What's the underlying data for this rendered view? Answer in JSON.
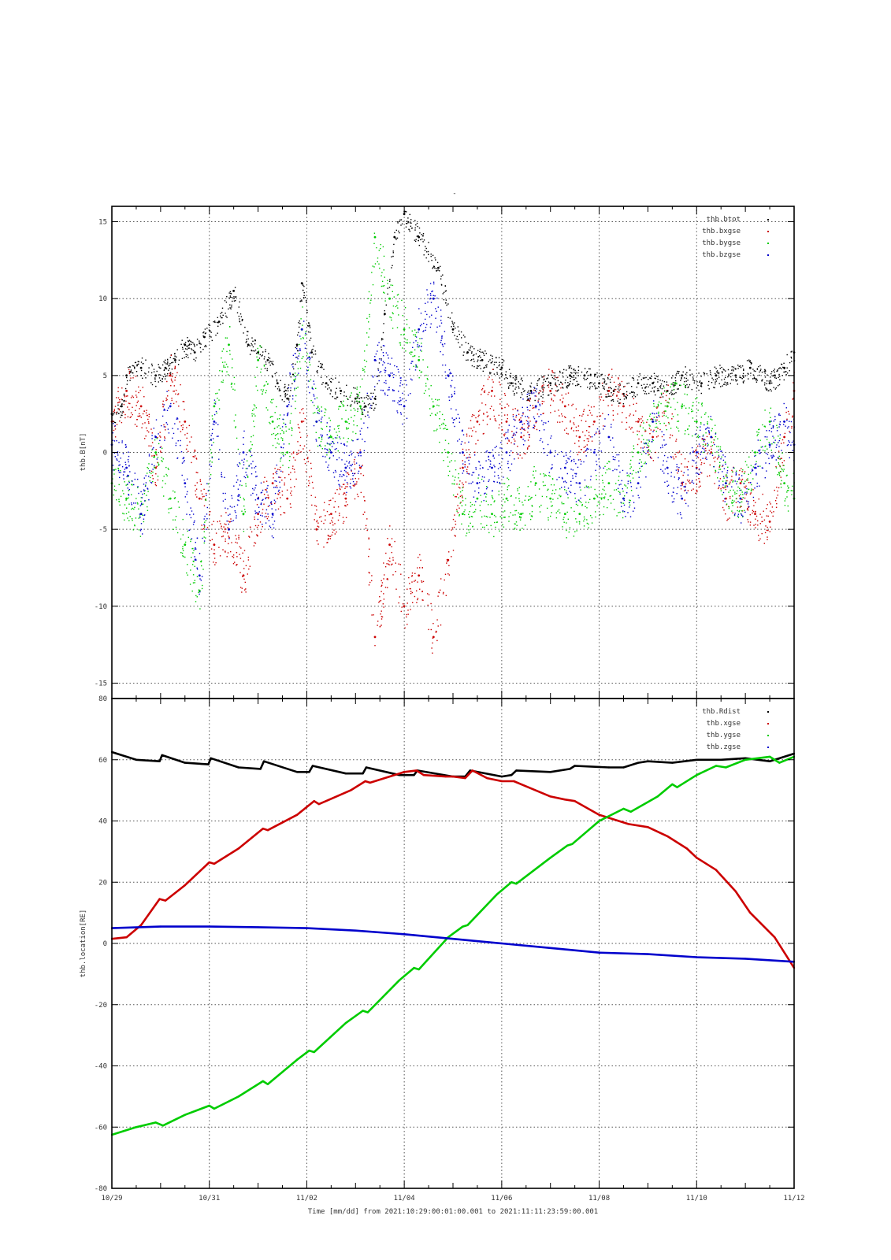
{
  "page_title_mark": "-",
  "time_axis": {
    "label": "Time [mm/dd]  from 2021:10:29:00:01:00.001  to  2021:11:11:23:59:00.001",
    "start": "10/29",
    "end": "11/12",
    "tick_labels": [
      "10/29",
      "10/31",
      "11/02",
      "11/04",
      "11/06",
      "11/08",
      "11/10",
      "11/12"
    ]
  },
  "chart_data": [
    {
      "type": "scatter",
      "title": "",
      "xlabel": "",
      "ylabel": "thb.B[nT]",
      "ylim": [
        -16,
        16
      ],
      "yticks": [
        15,
        10,
        5,
        0,
        -5,
        -10,
        -15
      ],
      "xlim_days": [
        0,
        14
      ],
      "grid": true,
      "legend_position": "top-right",
      "series": [
        {
          "name": "thb.btot",
          "color": "#000000",
          "x_days": [
            0.0,
            0.2,
            0.3,
            0.6,
            0.9,
            1.1,
            1.3,
            1.5,
            1.7,
            1.9,
            2.2,
            2.5,
            2.8,
            3.0,
            3.2,
            3.4,
            3.6,
            3.8,
            3.9,
            4.1,
            4.4,
            4.7,
            5.0,
            5.2,
            5.4,
            5.6,
            5.8,
            6.0,
            6.3,
            6.7,
            7.0,
            7.3,
            7.6,
            8.0,
            8.2,
            8.6,
            9.0,
            9.4,
            9.7,
            10.0,
            10.3,
            10.5,
            10.8,
            11.1,
            11.4,
            11.7,
            12.1,
            12.4,
            12.8,
            13.1,
            13.5,
            13.8,
            14.0
          ],
          "y": [
            2.5,
            3.0,
            5.0,
            5.5,
            5.0,
            5.5,
            6.0,
            7.0,
            6.5,
            7.5,
            8.5,
            10.5,
            7.0,
            6.5,
            6.0,
            4.5,
            3.5,
            7.0,
            11.0,
            6.5,
            4.5,
            4.0,
            3.5,
            3.0,
            3.5,
            9.0,
            14.0,
            15.5,
            14.0,
            12.0,
            8.0,
            6.5,
            6.0,
            5.5,
            4.5,
            4.0,
            4.5,
            5.0,
            5.0,
            4.5,
            4.0,
            3.8,
            4.5,
            4.5,
            4.0,
            5.0,
            4.5,
            5.0,
            5.0,
            5.5,
            4.5,
            5.5,
            6.5
          ]
        },
        {
          "name": "thb.bxgse",
          "color": "#cc0000",
          "x_days": [
            0.0,
            0.3,
            0.6,
            0.9,
            1.2,
            1.5,
            1.8,
            2.1,
            2.4,
            2.7,
            3.0,
            3.3,
            3.6,
            3.9,
            4.2,
            4.5,
            4.8,
            5.1,
            5.4,
            5.7,
            6.0,
            6.3,
            6.6,
            6.9,
            7.2,
            7.5,
            7.8,
            8.1,
            8.4,
            8.7,
            9.0,
            9.3,
            9.6,
            9.9,
            10.2,
            10.5,
            10.8,
            11.1,
            11.4,
            11.7,
            12.0,
            12.3,
            12.6,
            12.9,
            13.2,
            13.5,
            13.8,
            14.0
          ],
          "y": [
            2.0,
            4.0,
            3.0,
            -1.0,
            5.0,
            2.0,
            -3.0,
            -6.0,
            -5.0,
            -8.0,
            -4.0,
            -2.0,
            -3.0,
            2.0,
            -5.0,
            -4.0,
            -3.0,
            -1.0,
            -12.0,
            -6.0,
            -10.0,
            -8.0,
            -12.0,
            -7.0,
            -1.0,
            2.0,
            4.0,
            2.0,
            1.0,
            3.0,
            4.0,
            3.0,
            1.0,
            2.0,
            4.0,
            3.0,
            2.0,
            1.0,
            3.0,
            -2.0,
            -1.0,
            0.0,
            -3.0,
            -2.0,
            -4.0,
            -4.5,
            1.0,
            4.0
          ]
        },
        {
          "name": "thb.bygse",
          "color": "#00cc00",
          "x_days": [
            0.0,
            0.3,
            0.6,
            0.9,
            1.2,
            1.5,
            1.8,
            2.1,
            2.4,
            2.7,
            3.0,
            3.3,
            3.6,
            3.9,
            4.2,
            4.5,
            4.8,
            5.1,
            5.4,
            5.7,
            6.0,
            6.3,
            6.6,
            6.9,
            7.2,
            7.5,
            7.8,
            8.1,
            8.4,
            8.7,
            9.0,
            9.3,
            9.6,
            9.9,
            10.2,
            10.5,
            10.8,
            11.1,
            11.4,
            11.7,
            12.0,
            12.3,
            12.6,
            12.9,
            13.2,
            13.5,
            13.8,
            14.0
          ],
          "y": [
            -2.0,
            -3.0,
            -4.0,
            0.0,
            -3.0,
            -6.0,
            -9.0,
            3.0,
            7.0,
            -4.0,
            6.0,
            2.0,
            0.0,
            8.0,
            2.0,
            1.0,
            2.0,
            3.0,
            14.0,
            10.0,
            8.0,
            6.0,
            3.0,
            0.0,
            -4.0,
            -3.0,
            -4.0,
            -3.0,
            -4.0,
            -2.0,
            -3.0,
            -4.0,
            -4.0,
            -3.0,
            -2.0,
            -3.0,
            0.0,
            2.0,
            3.0,
            3.0,
            2.0,
            1.0,
            -2.0,
            -3.0,
            0.0,
            2.0,
            -2.0,
            -3.0
          ]
        },
        {
          "name": "thb.bzgse",
          "color": "#0000cc",
          "x_days": [
            0.0,
            0.3,
            0.6,
            0.9,
            1.2,
            1.5,
            1.8,
            2.1,
            2.4,
            2.7,
            3.0,
            3.3,
            3.6,
            3.9,
            4.2,
            4.5,
            4.8,
            5.1,
            5.4,
            5.7,
            6.0,
            6.3,
            6.6,
            6.9,
            7.2,
            7.5,
            7.8,
            8.1,
            8.4,
            8.7,
            9.0,
            9.3,
            9.6,
            9.9,
            10.2,
            10.5,
            10.8,
            11.1,
            11.4,
            11.7,
            12.0,
            12.3,
            12.6,
            12.9,
            13.2,
            13.5,
            13.8,
            14.0
          ],
          "y": [
            0.5,
            -1.0,
            -4.0,
            1.0,
            3.0,
            -2.0,
            -8.0,
            2.0,
            -5.0,
            0.0,
            -3.0,
            -4.0,
            3.0,
            8.0,
            2.0,
            0.0,
            -1.0,
            0.0,
            6.0,
            5.0,
            3.0,
            8.0,
            10.0,
            5.0,
            0.0,
            -2.0,
            -1.0,
            0.0,
            2.0,
            3.0,
            0.0,
            -1.0,
            -2.0,
            0.0,
            1.0,
            -3.0,
            -2.0,
            2.0,
            -1.0,
            -3.0,
            0.0,
            1.0,
            -2.0,
            -3.0,
            -1.0,
            0.5,
            2.0,
            0.5
          ]
        }
      ]
    },
    {
      "type": "line",
      "title": "",
      "xlabel": "",
      "ylabel": "thb.location[RE]",
      "ylim": [
        -80,
        80
      ],
      "yticks": [
        80,
        60,
        40,
        20,
        0,
        -20,
        -40,
        -60,
        -80
      ],
      "xlim_days": [
        0,
        14
      ],
      "grid": true,
      "legend_position": "top-right",
      "series": [
        {
          "name": "thb.Rdist",
          "color": "#000000",
          "x_days": [
            0.0,
            0.5,
            0.98,
            1.03,
            1.5,
            1.98,
            2.03,
            2.6,
            3.05,
            3.12,
            3.8,
            4.05,
            4.12,
            4.8,
            5.15,
            5.22,
            5.9,
            6.2,
            6.27,
            7.0,
            7.25,
            7.35,
            8.0,
            8.2,
            8.3,
            9.0,
            9.4,
            9.5,
            10.2,
            10.5,
            10.8,
            11.0,
            11.5,
            12.0,
            12.5,
            13.0,
            13.5,
            14.0
          ],
          "y": [
            62.5,
            60.0,
            59.5,
            61.5,
            59.0,
            58.5,
            60.5,
            57.5,
            57.0,
            59.5,
            56.0,
            56.0,
            58.0,
            55.5,
            55.5,
            57.5,
            55.0,
            55.0,
            56.5,
            54.5,
            54.5,
            56.5,
            54.5,
            55.0,
            56.5,
            56.0,
            57.0,
            58.0,
            57.5,
            57.5,
            59.0,
            59.5,
            59.0,
            60.0,
            60.0,
            60.5,
            59.5,
            62.0
          ]
        },
        {
          "name": "thb.xgse",
          "color": "#cc0000",
          "x_days": [
            0.0,
            0.3,
            0.6,
            0.98,
            1.1,
            1.5,
            2.0,
            2.1,
            2.6,
            3.1,
            3.2,
            3.8,
            4.15,
            4.25,
            4.9,
            5.2,
            5.3,
            6.0,
            6.25,
            6.4,
            6.85,
            7.0,
            7.25,
            7.4,
            7.7,
            8.0,
            8.25,
            8.4,
            9.0,
            9.3,
            9.5,
            10.0,
            10.6,
            11.0,
            11.4,
            11.8,
            12.0,
            12.4,
            12.8,
            13.1,
            13.6,
            14.0
          ],
          "y": [
            1.5,
            2.0,
            6.0,
            14.5,
            14.0,
            19.0,
            26.5,
            26.0,
            31.0,
            37.5,
            37.0,
            42.0,
            46.5,
            45.5,
            50.0,
            53.0,
            52.5,
            56.0,
            56.5,
            55.0,
            54.5,
            54.5,
            54.0,
            56.5,
            54.0,
            53.0,
            53.0,
            52.0,
            48.0,
            47.0,
            46.5,
            42.0,
            39.0,
            38.0,
            35.0,
            31.0,
            28.0,
            24.0,
            17.0,
            10.0,
            2.0,
            -8.0
          ]
        },
        {
          "name": "thb.ygse",
          "color": "#00cc00",
          "x_days": [
            0.0,
            0.5,
            0.9,
            1.05,
            1.5,
            2.0,
            2.1,
            2.6,
            3.1,
            3.2,
            3.8,
            4.05,
            4.15,
            4.8,
            5.15,
            5.25,
            5.9,
            6.2,
            6.3,
            6.9,
            7.2,
            7.3,
            7.9,
            8.2,
            8.3,
            9.0,
            9.35,
            9.45,
            10.0,
            10.5,
            10.65,
            11.2,
            11.5,
            11.6,
            12.0,
            12.4,
            12.6,
            13.0,
            13.5,
            13.7,
            14.0
          ],
          "y": [
            -62.5,
            -60.0,
            -58.5,
            -59.5,
            -56.0,
            -53.0,
            -54.0,
            -50.0,
            -45.0,
            -46.0,
            -38.0,
            -35.0,
            -35.5,
            -26.0,
            -22.0,
            -22.5,
            -12.0,
            -8.0,
            -8.5,
            2.0,
            5.5,
            6.0,
            16.0,
            20.0,
            19.5,
            28.0,
            32.0,
            32.5,
            40.0,
            44.0,
            43.0,
            48.0,
            52.0,
            51.0,
            55.0,
            58.0,
            57.5,
            60.0,
            61.0,
            59.0,
            61.0
          ]
        },
        {
          "name": "thb.zgse",
          "color": "#0000cc",
          "x_days": [
            0.0,
            1.0,
            2.0,
            3.0,
            4.0,
            5.0,
            6.0,
            7.0,
            8.0,
            9.0,
            10.0,
            11.0,
            12.0,
            13.0,
            14.0
          ],
          "y": [
            5.0,
            5.5,
            5.5,
            5.3,
            5.0,
            4.2,
            3.0,
            1.5,
            0.0,
            -1.5,
            -3.0,
            -3.5,
            -4.5,
            -5.0,
            -6.0
          ]
        }
      ]
    }
  ]
}
